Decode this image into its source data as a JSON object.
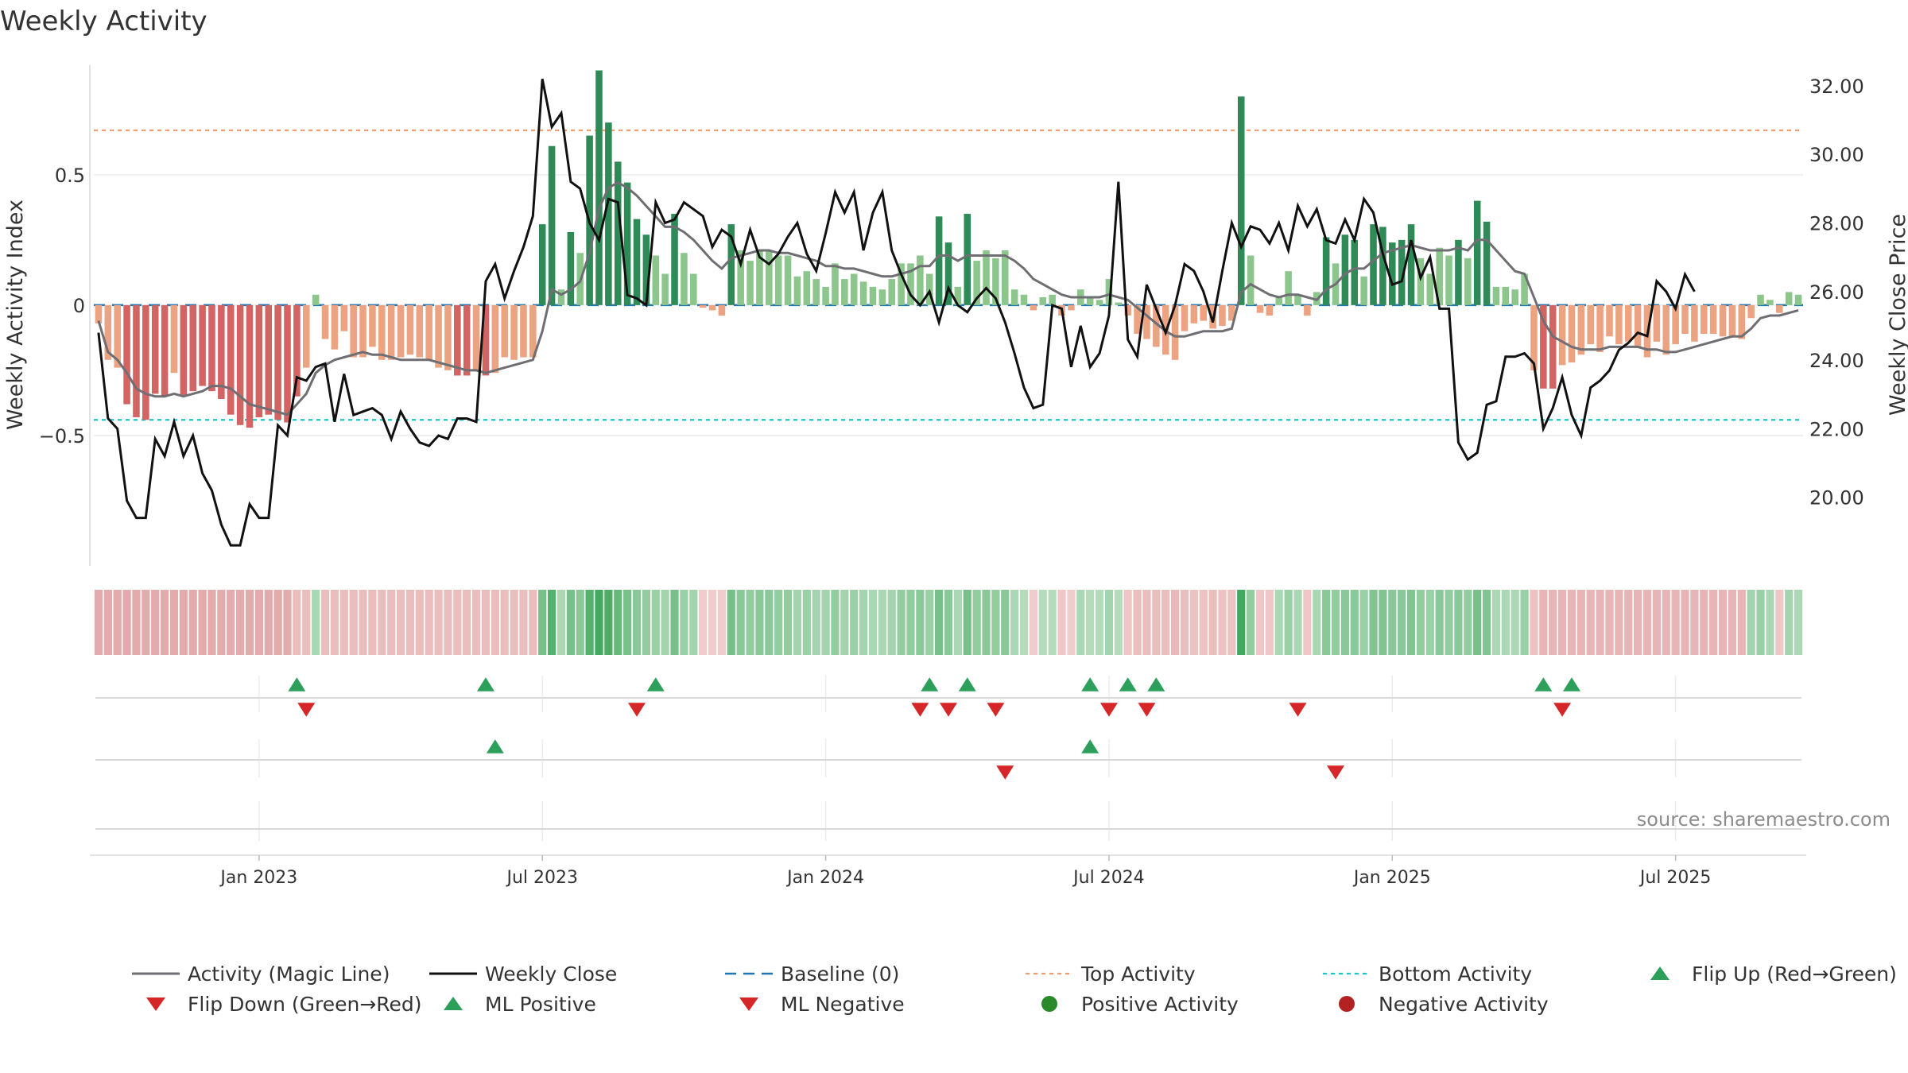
{
  "chart_data": {
    "type": "bar",
    "title": "Weekly Activity",
    "ylabel_left": "Weekly Activity Index",
    "ylabel_right": "Weekly Close Price",
    "source": "source: sharemaestro.com",
    "ylim_left": [
      -1.0,
      0.92
    ],
    "ylim_right": [
      18.0,
      32.6
    ],
    "yticks_left": [
      {
        "v": 0.5,
        "label": "0.5"
      },
      {
        "v": 0,
        "label": "0"
      },
      {
        "v": -0.5,
        "label": "−0.5"
      }
    ],
    "yticks_right": [
      {
        "v": 32,
        "label": "32.00"
      },
      {
        "v": 30,
        "label": "30.00"
      },
      {
        "v": 28,
        "label": "28.00"
      },
      {
        "v": 26,
        "label": "26.00"
      },
      {
        "v": 24,
        "label": "24.00"
      },
      {
        "v": 22,
        "label": "22.00"
      },
      {
        "v": 20,
        "label": "20.00"
      }
    ],
    "xticks": [
      {
        "i": 17,
        "label": "Jan 2023"
      },
      {
        "i": 47,
        "label": "Jul 2023"
      },
      {
        "i": 77,
        "label": "Jan 2024"
      },
      {
        "i": 107,
        "label": "Jul 2024"
      },
      {
        "i": 137,
        "label": "Jan 2025"
      },
      {
        "i": 167,
        "label": "Jul 2025"
      }
    ],
    "top_activity": 0.67,
    "bottom_activity": -0.44,
    "baseline": 0,
    "colors": {
      "strong_pos": "#2e8b57",
      "mild_pos": "#8cc68c",
      "strong_neg": "#d36464",
      "mild_neg": "#eba382",
      "magic_line": "#6e6e73",
      "close": "#111111",
      "baseline": "#1f77b4",
      "top": "#f0a070",
      "bottom": "#22c4c8",
      "flip_up": "#2ca05a",
      "flip_down": "#d62728",
      "positive_activity": "#2a8a2a",
      "negative_activity": "#b22222"
    },
    "activity": [
      -0.07,
      -0.21,
      -0.24,
      -0.38,
      -0.43,
      -0.44,
      -0.34,
      -0.35,
      -0.26,
      -0.35,
      -0.33,
      -0.31,
      -0.33,
      -0.36,
      -0.42,
      -0.46,
      -0.47,
      -0.43,
      -0.42,
      -0.44,
      -0.45,
      -0.35,
      -0.24,
      0.04,
      -0.13,
      -0.17,
      -0.1,
      -0.2,
      -0.2,
      -0.16,
      -0.21,
      -0.21,
      -0.2,
      -0.19,
      -0.2,
      -0.21,
      -0.24,
      -0.25,
      -0.27,
      -0.27,
      -0.25,
      -0.27,
      -0.26,
      -0.2,
      -0.21,
      -0.2,
      -0.2,
      0.31,
      0.61,
      0.06,
      0.28,
      0.2,
      0.65,
      0.9,
      0.7,
      0.55,
      0.47,
      0.33,
      0.27,
      0.19,
      0.12,
      0.35,
      0.2,
      0.12,
      -0.01,
      -0.02,
      -0.04,
      0.31,
      0.21,
      0.17,
      0.21,
      0.21,
      0.19,
      0.19,
      0.11,
      0.13,
      0.1,
      0.07,
      0.16,
      0.1,
      0.12,
      0.09,
      0.07,
      0.06,
      0.1,
      0.16,
      0.16,
      0.19,
      0.12,
      0.34,
      0.24,
      0.07,
      0.35,
      0.17,
      0.21,
      0.18,
      0.21,
      0.06,
      0.04,
      -0.02,
      0.03,
      0.04,
      -0.04,
      -0.02,
      0.06,
      0.03,
      0.02,
      0.1,
      0.01,
      -0.04,
      -0.11,
      -0.13,
      -0.16,
      -0.19,
      -0.21,
      -0.1,
      -0.07,
      -0.06,
      -0.09,
      -0.08,
      -0.06,
      0.8,
      0.19,
      -0.03,
      -0.04,
      0.03,
      0.13,
      0.04,
      -0.04,
      0.05,
      0.26,
      0.16,
      0.27,
      0.25,
      0.11,
      0.31,
      0.3,
      0.24,
      0.25,
      0.31,
      0.18,
      0.12,
      0.22,
      0.19,
      0.25,
      0.18,
      0.4,
      0.32,
      0.07,
      0.07,
      0.06,
      0.12,
      -0.25,
      -0.32,
      -0.32,
      -0.23,
      -0.22,
      -0.19,
      -0.15,
      -0.18,
      -0.12,
      -0.15,
      -0.14,
      -0.16,
      -0.2,
      -0.14,
      -0.19,
      -0.15,
      -0.11,
      -0.14,
      -0.11,
      -0.11,
      -0.12,
      -0.12,
      -0.13,
      -0.05,
      0.04,
      0.02,
      -0.03,
      0.05,
      0.04
    ],
    "magic_line": [
      -0.06,
      -0.18,
      -0.21,
      -0.26,
      -0.32,
      -0.34,
      -0.35,
      -0.35,
      -0.34,
      -0.35,
      -0.34,
      -0.33,
      -0.31,
      -0.31,
      -0.32,
      -0.35,
      -0.38,
      -0.39,
      -0.4,
      -0.41,
      -0.42,
      -0.38,
      -0.34,
      -0.26,
      -0.23,
      -0.21,
      -0.2,
      -0.19,
      -0.18,
      -0.19,
      -0.19,
      -0.2,
      -0.21,
      -0.21,
      -0.21,
      -0.21,
      -0.22,
      -0.23,
      -0.24,
      -0.25,
      -0.25,
      -0.26,
      -0.25,
      -0.24,
      -0.23,
      -0.22,
      -0.21,
      -0.1,
      0.06,
      0.04,
      0.06,
      0.09,
      0.2,
      0.37,
      0.45,
      0.47,
      0.45,
      0.42,
      0.38,
      0.34,
      0.3,
      0.3,
      0.28,
      0.25,
      0.21,
      0.17,
      0.14,
      0.18,
      0.19,
      0.2,
      0.21,
      0.21,
      0.2,
      0.2,
      0.19,
      0.18,
      0.17,
      0.15,
      0.15,
      0.14,
      0.14,
      0.13,
      0.12,
      0.11,
      0.11,
      0.12,
      0.13,
      0.15,
      0.15,
      0.19,
      0.19,
      0.17,
      0.19,
      0.19,
      0.19,
      0.19,
      0.19,
      0.17,
      0.14,
      0.1,
      0.08,
      0.06,
      0.04,
      0.03,
      0.03,
      0.03,
      0.03,
      0.04,
      0.03,
      0.02,
      -0.01,
      -0.04,
      -0.07,
      -0.1,
      -0.12,
      -0.12,
      -0.11,
      -0.1,
      -0.1,
      -0.1,
      -0.09,
      0.05,
      0.08,
      0.06,
      0.04,
      0.03,
      0.04,
      0.04,
      0.03,
      0.02,
      0.06,
      0.08,
      0.12,
      0.14,
      0.14,
      0.17,
      0.2,
      0.21,
      0.22,
      0.23,
      0.22,
      0.21,
      0.21,
      0.21,
      0.22,
      0.21,
      0.25,
      0.25,
      0.21,
      0.17,
      0.13,
      0.12,
      0.03,
      -0.06,
      -0.12,
      -0.14,
      -0.16,
      -0.17,
      -0.17,
      -0.17,
      -0.16,
      -0.16,
      -0.16,
      -0.16,
      -0.17,
      -0.17,
      -0.18,
      -0.18,
      -0.17,
      -0.16,
      -0.15,
      -0.14,
      -0.13,
      -0.12,
      -0.12,
      -0.09,
      -0.05,
      -0.04,
      -0.04,
      -0.03,
      -0.02
    ],
    "close": [
      24.8,
      22.3,
      22.0,
      19.9,
      19.4,
      19.4,
      21.7,
      21.2,
      22.2,
      21.2,
      21.8,
      20.7,
      20.2,
      19.2,
      18.6,
      18.6,
      19.8,
      19.4,
      19.4,
      22.1,
      21.8,
      23.5,
      23.4,
      23.8,
      23.9,
      22.2,
      23.6,
      22.4,
      22.5,
      22.6,
      22.4,
      21.7,
      22.5,
      22.0,
      21.6,
      21.5,
      21.8,
      21.7,
      22.3,
      22.3,
      22.2,
      26.3,
      26.8,
      25.8,
      26.6,
      27.3,
      28.2,
      32.2,
      30.8,
      31.2,
      29.2,
      29.0,
      28.0,
      27.5,
      28.7,
      28.6,
      25.9,
      25.8,
      25.6,
      28.6,
      28.0,
      28.1,
      28.6,
      28.4,
      28.2,
      27.3,
      27.8,
      27.6,
      26.8,
      27.8,
      27.0,
      26.8,
      27.1,
      27.6,
      28.0,
      27.1,
      26.6,
      27.7,
      28.9,
      28.3,
      28.9,
      27.2,
      28.3,
      28.9,
      27.2,
      26.5,
      25.9,
      25.6,
      26.0,
      25.1,
      26.1,
      25.6,
      25.4,
      25.8,
      26.1,
      25.8,
      25.1,
      24.2,
      23.2,
      22.6,
      22.7,
      25.6,
      25.5,
      23.8,
      25.0,
      23.8,
      24.2,
      25.3,
      29.2,
      24.6,
      24.1,
      26.2,
      25.5,
      24.8,
      25.6,
      26.8,
      26.6,
      26.0,
      25.1,
      26.6,
      28.0,
      27.3,
      27.9,
      27.8,
      27.4,
      28.0,
      27.2,
      28.5,
      27.9,
      28.4,
      27.5,
      27.4,
      28.1,
      27.5,
      28.7,
      28.3,
      27.1,
      26.2,
      26.3,
      27.5,
      26.4,
      27.0,
      25.5,
      25.5,
      21.6,
      21.1,
      21.3,
      22.7,
      22.8,
      24.1,
      24.1,
      24.2,
      23.9,
      22.0,
      22.6,
      23.5,
      22.4,
      21.8,
      23.2,
      23.4,
      23.7,
      24.3,
      24.5,
      24.8,
      24.7,
      26.3,
      26.0,
      25.5,
      26.5,
      26.0
    ],
    "heat_strip": [
      -0.55,
      -0.55,
      -0.55,
      -0.55,
      -0.55,
      -0.55,
      -0.55,
      -0.55,
      -0.55,
      -0.55,
      -0.55,
      -0.55,
      -0.55,
      -0.55,
      -0.55,
      -0.55,
      -0.55,
      -0.55,
      -0.55,
      -0.55,
      -0.55,
      -0.35,
      -0.35,
      0.3,
      -0.35,
      -0.35,
      -0.35,
      -0.35,
      -0.35,
      -0.35,
      -0.35,
      -0.35,
      -0.35,
      -0.35,
      -0.35,
      -0.35,
      -0.35,
      -0.35,
      -0.35,
      -0.35,
      -0.35,
      -0.35,
      -0.35,
      -0.35,
      -0.35,
      -0.35,
      -0.35,
      0.6,
      0.8,
      0.3,
      0.6,
      0.5,
      0.8,
      0.9,
      0.85,
      0.7,
      0.6,
      0.5,
      0.45,
      0.4,
      0.35,
      0.6,
      0.4,
      0.35,
      -0.2,
      -0.2,
      -0.2,
      0.6,
      0.5,
      0.45,
      0.5,
      0.5,
      0.45,
      0.45,
      0.35,
      0.4,
      0.35,
      0.35,
      0.45,
      0.35,
      0.4,
      0.35,
      0.3,
      0.3,
      0.35,
      0.45,
      0.45,
      0.5,
      0.4,
      0.6,
      0.5,
      0.3,
      0.6,
      0.45,
      0.5,
      0.45,
      0.5,
      0.3,
      0.25,
      -0.2,
      0.25,
      0.25,
      -0.25,
      -0.2,
      0.3,
      0.25,
      0.25,
      0.35,
      0.25,
      -0.25,
      -0.35,
      -0.35,
      -0.35,
      -0.35,
      -0.4,
      -0.35,
      -0.3,
      -0.3,
      -0.35,
      -0.3,
      -0.3,
      0.9,
      0.45,
      -0.25,
      -0.25,
      0.3,
      0.4,
      0.3,
      -0.25,
      0.3,
      0.5,
      0.45,
      0.5,
      0.5,
      0.4,
      0.55,
      0.55,
      0.5,
      0.5,
      0.55,
      0.45,
      0.4,
      0.5,
      0.45,
      0.5,
      0.45,
      0.6,
      0.55,
      0.3,
      0.3,
      0.3,
      0.4,
      -0.3,
      -0.45,
      -0.45,
      -0.45,
      -0.45,
      -0.45,
      -0.45,
      -0.45,
      -0.45,
      -0.45,
      -0.45,
      -0.45,
      -0.45,
      -0.45,
      -0.45,
      -0.45,
      -0.45,
      -0.45,
      -0.45,
      -0.45,
      -0.45,
      -0.45,
      -0.45,
      0.35,
      0.4,
      0.3,
      -0.25,
      0.35,
      0.3
    ],
    "flip_up_weeks": [
      21,
      41,
      59,
      88,
      92,
      105,
      109,
      112,
      153,
      156
    ],
    "flip_down_weeks": [
      22,
      57,
      87,
      90,
      95,
      107,
      111,
      127,
      155
    ],
    "ml_positive_weeks": [
      42,
      105
    ],
    "ml_negative_weeks": [
      96,
      131
    ],
    "legend": [
      {
        "key": "magic",
        "label": "Activity (Magic Line)"
      },
      {
        "key": "close",
        "label": "Weekly Close"
      },
      {
        "key": "baseline",
        "label": "Baseline (0)"
      },
      {
        "key": "top",
        "label": "Top Activity"
      },
      {
        "key": "bottom",
        "label": "Bottom Activity"
      },
      {
        "key": "flipup",
        "label": "Flip Up (Red→Green)"
      },
      {
        "key": "flipdown",
        "label": "Flip Down (Green→Red)"
      },
      {
        "key": "mlpos",
        "label": "ML Positive"
      },
      {
        "key": "mlneg",
        "label": "ML Negative"
      },
      {
        "key": "posact",
        "label": "Positive Activity"
      },
      {
        "key": "negact",
        "label": "Negative Activity"
      }
    ]
  }
}
